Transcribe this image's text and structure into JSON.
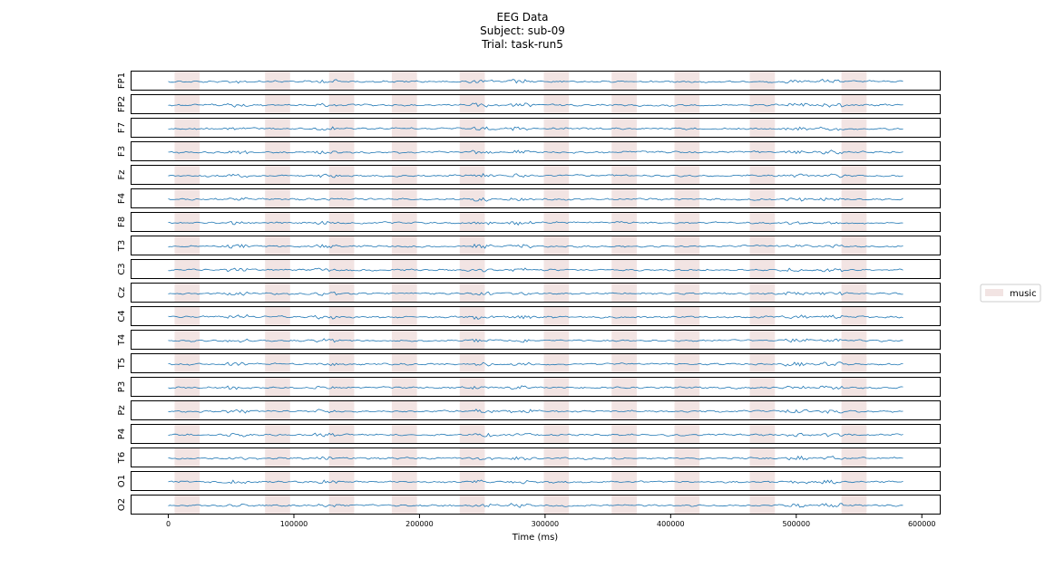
{
  "chart_data": {
    "type": "line",
    "title_lines": [
      "EEG Data",
      "Subject: sub-09",
      "Trial: task-run5"
    ],
    "xlabel": "Time (ms)",
    "xlim": [
      -30000,
      615000
    ],
    "xticks": [
      0,
      100000,
      200000,
      300000,
      400000,
      500000,
      600000
    ],
    "xtick_labels": [
      "0",
      "100000",
      "200000",
      "300000",
      "400000",
      "500000",
      "600000"
    ],
    "signal_range": [
      0,
      585000
    ],
    "channels": [
      "FP1",
      "FP2",
      "F7",
      "F3",
      "Fz",
      "F4",
      "F8",
      "T3",
      "C3",
      "Cz",
      "C4",
      "T4",
      "T5",
      "P3",
      "Pz",
      "P4",
      "T6",
      "O1",
      "O2"
    ],
    "events": [
      {
        "label": "music",
        "intervals": [
          [
            5000,
            25000
          ],
          [
            77000,
            97000
          ],
          [
            128000,
            148000
          ],
          [
            178000,
            198000
          ],
          [
            232000,
            252000
          ],
          [
            299000,
            319000
          ],
          [
            353000,
            373000
          ],
          [
            403000,
            423000
          ],
          [
            463000,
            483000
          ],
          [
            536000,
            556000
          ]
        ]
      }
    ],
    "legend": [
      {
        "label": "music",
        "color": "#f2e4e3"
      }
    ],
    "legend_position": "center-right",
    "line_color": "#1f77b4",
    "event_color": "#f2e4e3",
    "grid": false
  }
}
